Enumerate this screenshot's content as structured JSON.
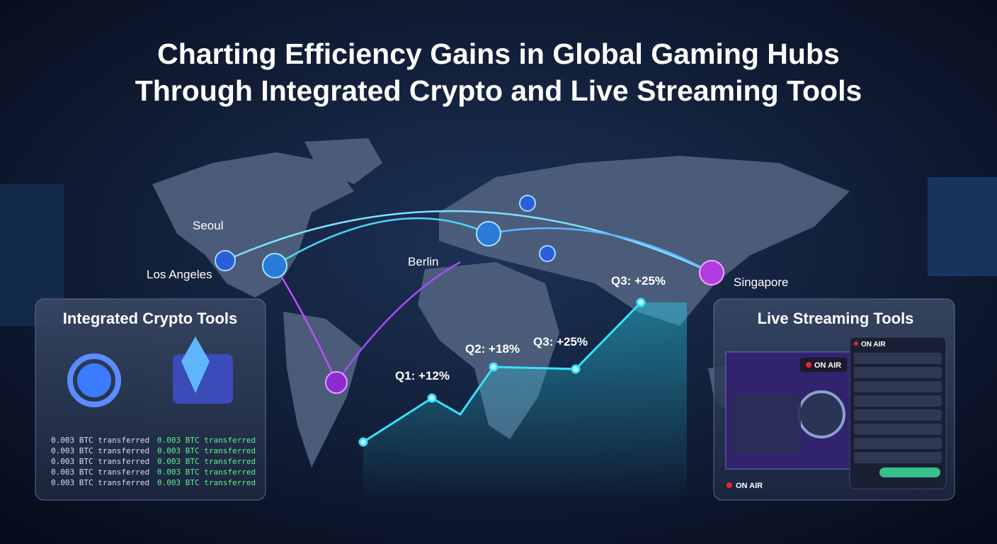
{
  "header": {
    "title_lines": [
      "Charting Efficiency Gains in Global Gaming Hubs",
      "Through Integrated Crypto and Live Streaming Tools"
    ]
  },
  "map": {
    "cities": [
      "Seoul",
      "Los Angeles",
      "Berlin",
      "Singapore"
    ]
  },
  "growth": {
    "labels": [
      "Q1: +12%",
      "Q2: +18%",
      "Q3: +25%",
      "Q3: +25%"
    ]
  },
  "crypto_panel": {
    "title": "Integrated Crypto Tools",
    "transfers": [
      [
        "0.003 BTC transferred",
        "0.003 BTC transferred"
      ],
      [
        "0.003 BTC transferred",
        "0.003 BTC transferred"
      ],
      [
        "0.003 BTC transferred",
        "0.003 BTC transferred"
      ],
      [
        "0.003 BTC transferred",
        "0.003 BTC transferred"
      ],
      [
        "0.003 BTC transferred",
        "0.003 BTC transferred"
      ]
    ]
  },
  "streaming_panel": {
    "title": "Live Streaming Tools",
    "chat_badge": "ON AIR",
    "video_badge": "ON AIR",
    "status": "ON AIR"
  }
}
